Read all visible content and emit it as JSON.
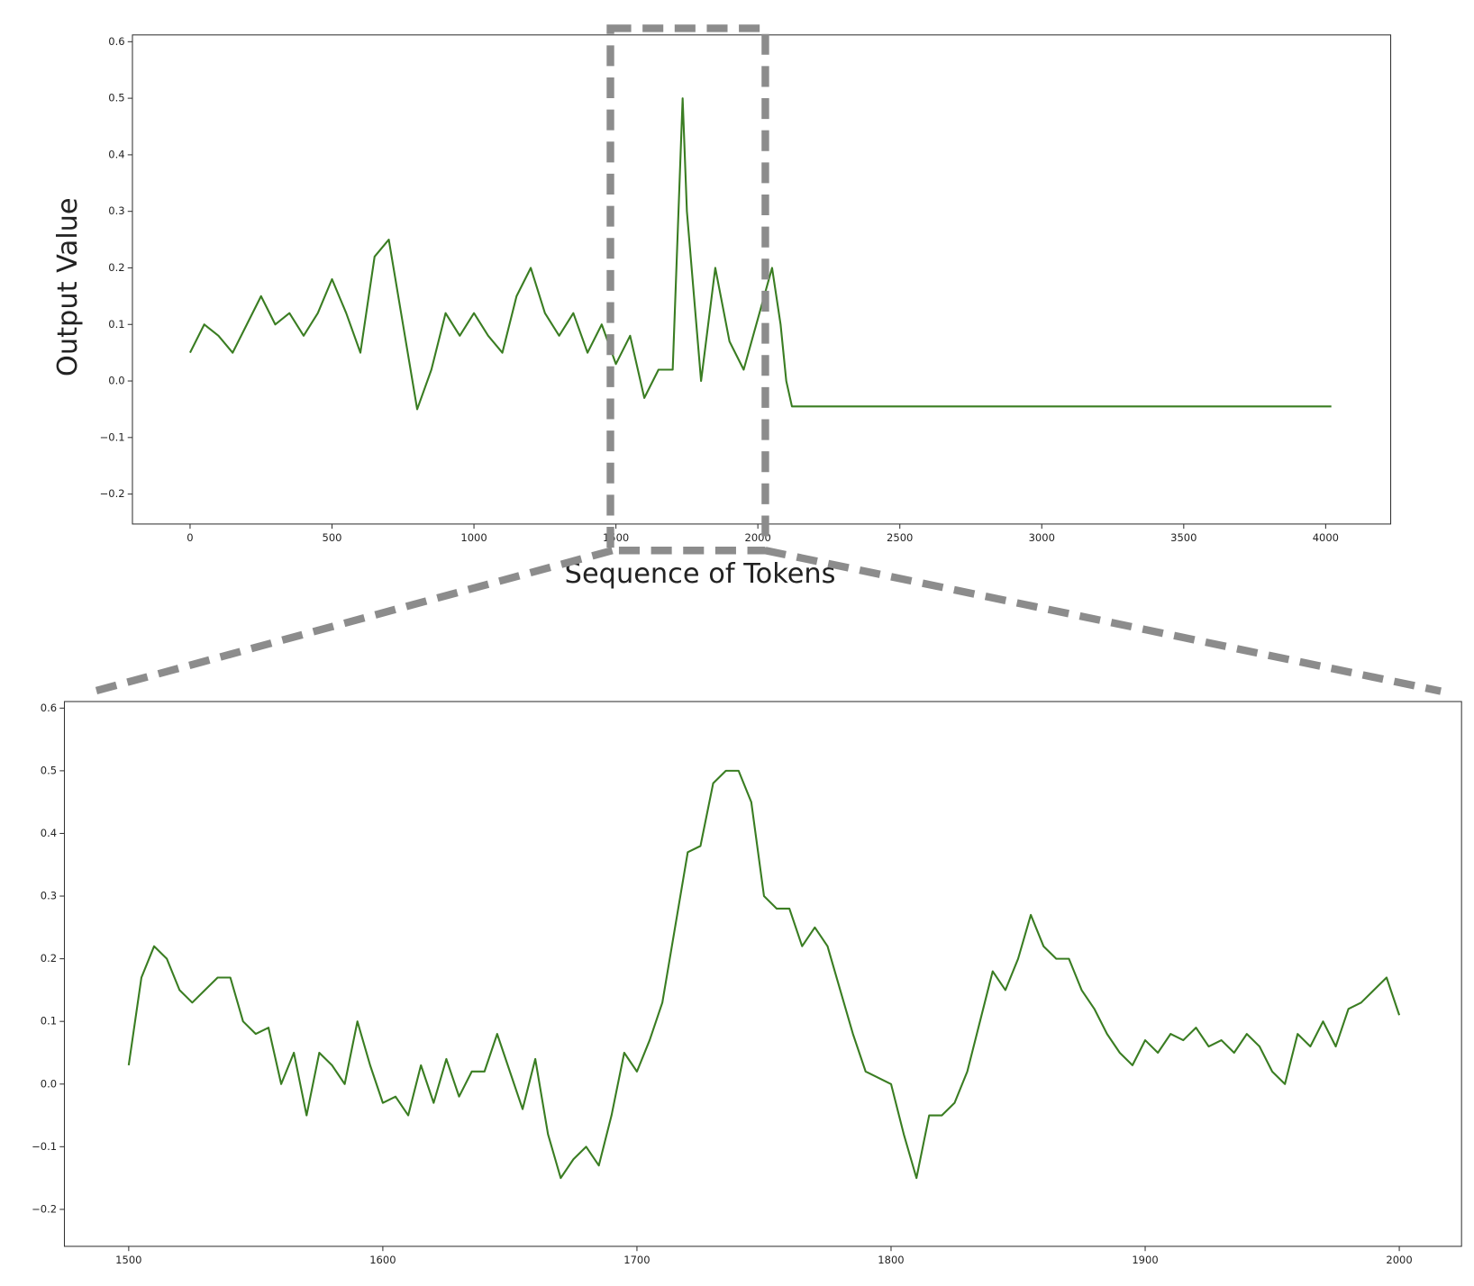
{
  "chart_data": [
    {
      "type": "line",
      "x_label": "Sequence of Tokens",
      "y_label": "Output Value",
      "color": "#3a7d22",
      "x": [
        0,
        50,
        100,
        150,
        200,
        250,
        300,
        350,
        400,
        450,
        500,
        550,
        600,
        650,
        700,
        750,
        800,
        850,
        900,
        950,
        1000,
        1050,
        1100,
        1150,
        1200,
        1250,
        1300,
        1350,
        1400,
        1450,
        1500,
        1550,
        1600,
        1650,
        1700,
        1735,
        1750,
        1800,
        1850,
        1900,
        1950,
        2000,
        2050,
        2080,
        2100,
        2120,
        4020
      ],
      "values": [
        0.05,
        0.1,
        0.08,
        0.05,
        0.1,
        0.15,
        0.1,
        0.12,
        0.08,
        0.12,
        0.18,
        0.12,
        0.05,
        0.22,
        0.25,
        0.1,
        -0.05,
        0.02,
        0.12,
        0.08,
        0.12,
        0.08,
        0.05,
        0.15,
        0.2,
        0.12,
        0.08,
        0.12,
        0.05,
        0.1,
        0.03,
        0.08,
        -0.03,
        0.02,
        0.02,
        0.5,
        0.3,
        0.0,
        0.2,
        0.07,
        0.02,
        0.11,
        0.2,
        0.1,
        0.0,
        -0.045,
        -0.045
      ],
      "xlim": [
        -203,
        4229
      ],
      "ylim": [
        -0.253,
        0.612
      ],
      "xticks": [
        0,
        500,
        1000,
        1500,
        2000,
        2500,
        3000,
        3500,
        4000
      ],
      "yticks": [
        {
          "value": -0.2,
          "label": "−0.2"
        },
        {
          "value": -0.1,
          "label": "−0.1"
        },
        {
          "value": 0,
          "label": "0.0"
        },
        0.1,
        0.2,
        0.3,
        0.4,
        0.5,
        0.6
      ]
    },
    {
      "type": "line",
      "color": "#3a7d22",
      "x": [
        1500,
        1505,
        1510,
        1515,
        1520,
        1525,
        1530,
        1535,
        1540,
        1545,
        1550,
        1555,
        1560,
        1565,
        1570,
        1575,
        1580,
        1585,
        1590,
        1595,
        1600,
        1605,
        1610,
        1615,
        1620,
        1625,
        1630,
        1635,
        1640,
        1645,
        1650,
        1655,
        1660,
        1665,
        1670,
        1675,
        1680,
        1685,
        1690,
        1695,
        1700,
        1705,
        1710,
        1715,
        1720,
        1725,
        1730,
        1735,
        1740,
        1745,
        1750,
        1755,
        1760,
        1765,
        1770,
        1775,
        1780,
        1785,
        1790,
        1795,
        1800,
        1805,
        1810,
        1815,
        1820,
        1825,
        1830,
        1835,
        1840,
        1845,
        1850,
        1855,
        1860,
        1865,
        1870,
        1875,
        1880,
        1885,
        1890,
        1895,
        1900,
        1905,
        1910,
        1915,
        1920,
        1925,
        1930,
        1935,
        1940,
        1945,
        1950,
        1955,
        1960,
        1965,
        1970,
        1975,
        1980,
        1985,
        1990,
        1995,
        2000
      ],
      "values": [
        0.03,
        0.17,
        0.22,
        0.2,
        0.15,
        0.13,
        0.15,
        0.17,
        0.17,
        0.1,
        0.08,
        0.09,
        0.0,
        0.05,
        -0.05,
        0.05,
        0.03,
        0.0,
        0.1,
        0.03,
        -0.03,
        -0.02,
        -0.05,
        0.03,
        -0.03,
        0.04,
        -0.02,
        0.02,
        0.02,
        0.08,
        0.02,
        -0.04,
        0.04,
        -0.08,
        -0.15,
        -0.12,
        -0.1,
        -0.13,
        -0.05,
        0.05,
        0.02,
        0.07,
        0.13,
        0.25,
        0.37,
        0.38,
        0.48,
        0.5,
        0.5,
        0.45,
        0.3,
        0.28,
        0.28,
        0.22,
        0.25,
        0.22,
        0.15,
        0.08,
        0.02,
        0.01,
        0.0,
        -0.08,
        -0.15,
        -0.05,
        -0.05,
        -0.03,
        0.02,
        0.1,
        0.18,
        0.15,
        0.2,
        0.27,
        0.22,
        0.2,
        0.2,
        0.15,
        0.12,
        0.08,
        0.05,
        0.03,
        0.07,
        0.05,
        0.08,
        0.07,
        0.09,
        0.06,
        0.07,
        0.05,
        0.08,
        0.06,
        0.02,
        0.0,
        0.08,
        0.06,
        0.1,
        0.06,
        0.12,
        0.13,
        0.15,
        0.17,
        0.11
      ],
      "xlim": [
        1474.7,
        2024.5
      ],
      "ylim": [
        -0.259,
        0.6105
      ],
      "xticks": [
        1500,
        1600,
        1700,
        1800,
        1900,
        2000
      ],
      "yticks": [
        {
          "value": -0.2,
          "label": "−0.2"
        },
        {
          "value": -0.1,
          "label": "−0.1"
        },
        {
          "value": 0,
          "label": "0.0"
        },
        0.1,
        0.2,
        0.3,
        0.4,
        0.5,
        0.6
      ]
    }
  ]
}
